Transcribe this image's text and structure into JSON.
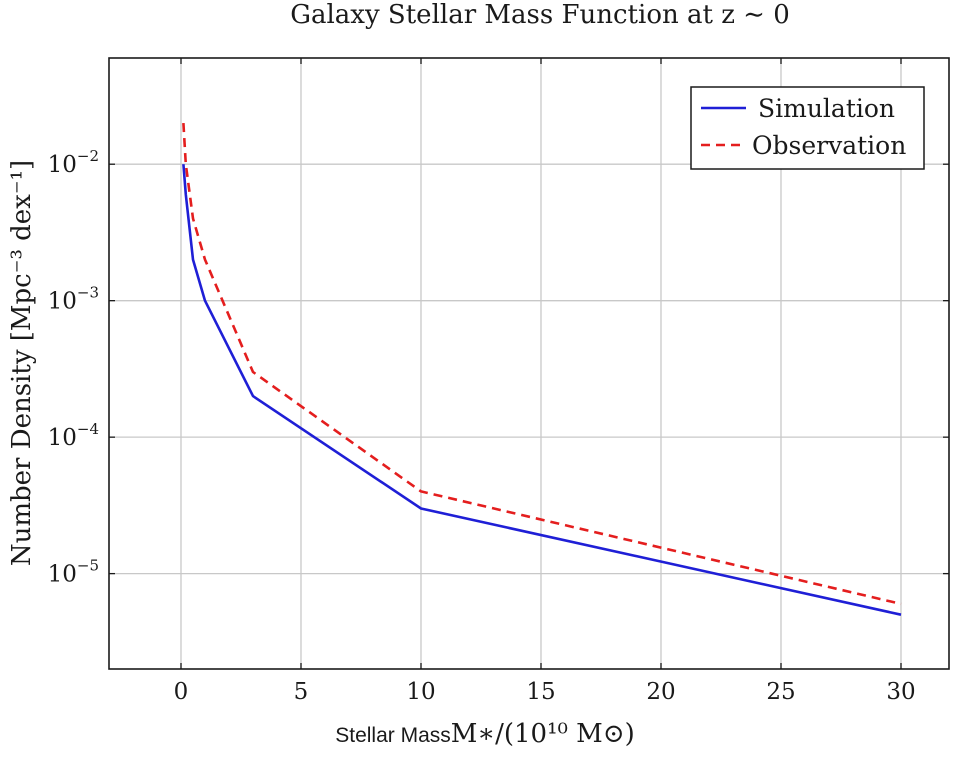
{
  "chart_data": {
    "type": "line",
    "title": "Galaxy Stellar Mass Function at z ∼ 0",
    "xlabel_prefix": "Stellar Mass",
    "xlabel": "M∗/(10¹⁰ M⊙)",
    "ylabel": "Number Density [Mpc⁻³ dex⁻¹]",
    "xlim": [
      -3,
      32
    ],
    "ylim": [
      2e-06,
      0.06
    ],
    "yscale": "log",
    "x_ticks": [
      0,
      5,
      10,
      15,
      20,
      25,
      30
    ],
    "x_tick_labels": [
      "0",
      "5",
      "10",
      "15",
      "20",
      "25",
      "30"
    ],
    "y_ticks": [
      1e-05,
      0.0001,
      0.001,
      0.01
    ],
    "y_tick_labels": [
      {
        "base": "10",
        "exp": "−5"
      },
      {
        "base": "10",
        "exp": "−4"
      },
      {
        "base": "10",
        "exp": "−3"
      },
      {
        "base": "10",
        "exp": "−2"
      }
    ],
    "grid": true,
    "legend_position": "top-right",
    "series": [
      {
        "name": "Simulation",
        "color": "#1f1fd6",
        "style": "solid",
        "x": [
          0.1,
          0.2,
          0.5,
          1,
          3,
          10,
          30
        ],
        "y": [
          0.01,
          0.006,
          0.002,
          0.001,
          0.0002,
          3e-05,
          5e-06
        ]
      },
      {
        "name": "Observation",
        "color": "#e41e1e",
        "style": "dashed",
        "x": [
          0.1,
          0.2,
          0.5,
          1,
          3,
          10,
          30
        ],
        "y": [
          0.02,
          0.01,
          0.004,
          0.002,
          0.0003,
          4e-05,
          6e-06
        ]
      }
    ]
  }
}
